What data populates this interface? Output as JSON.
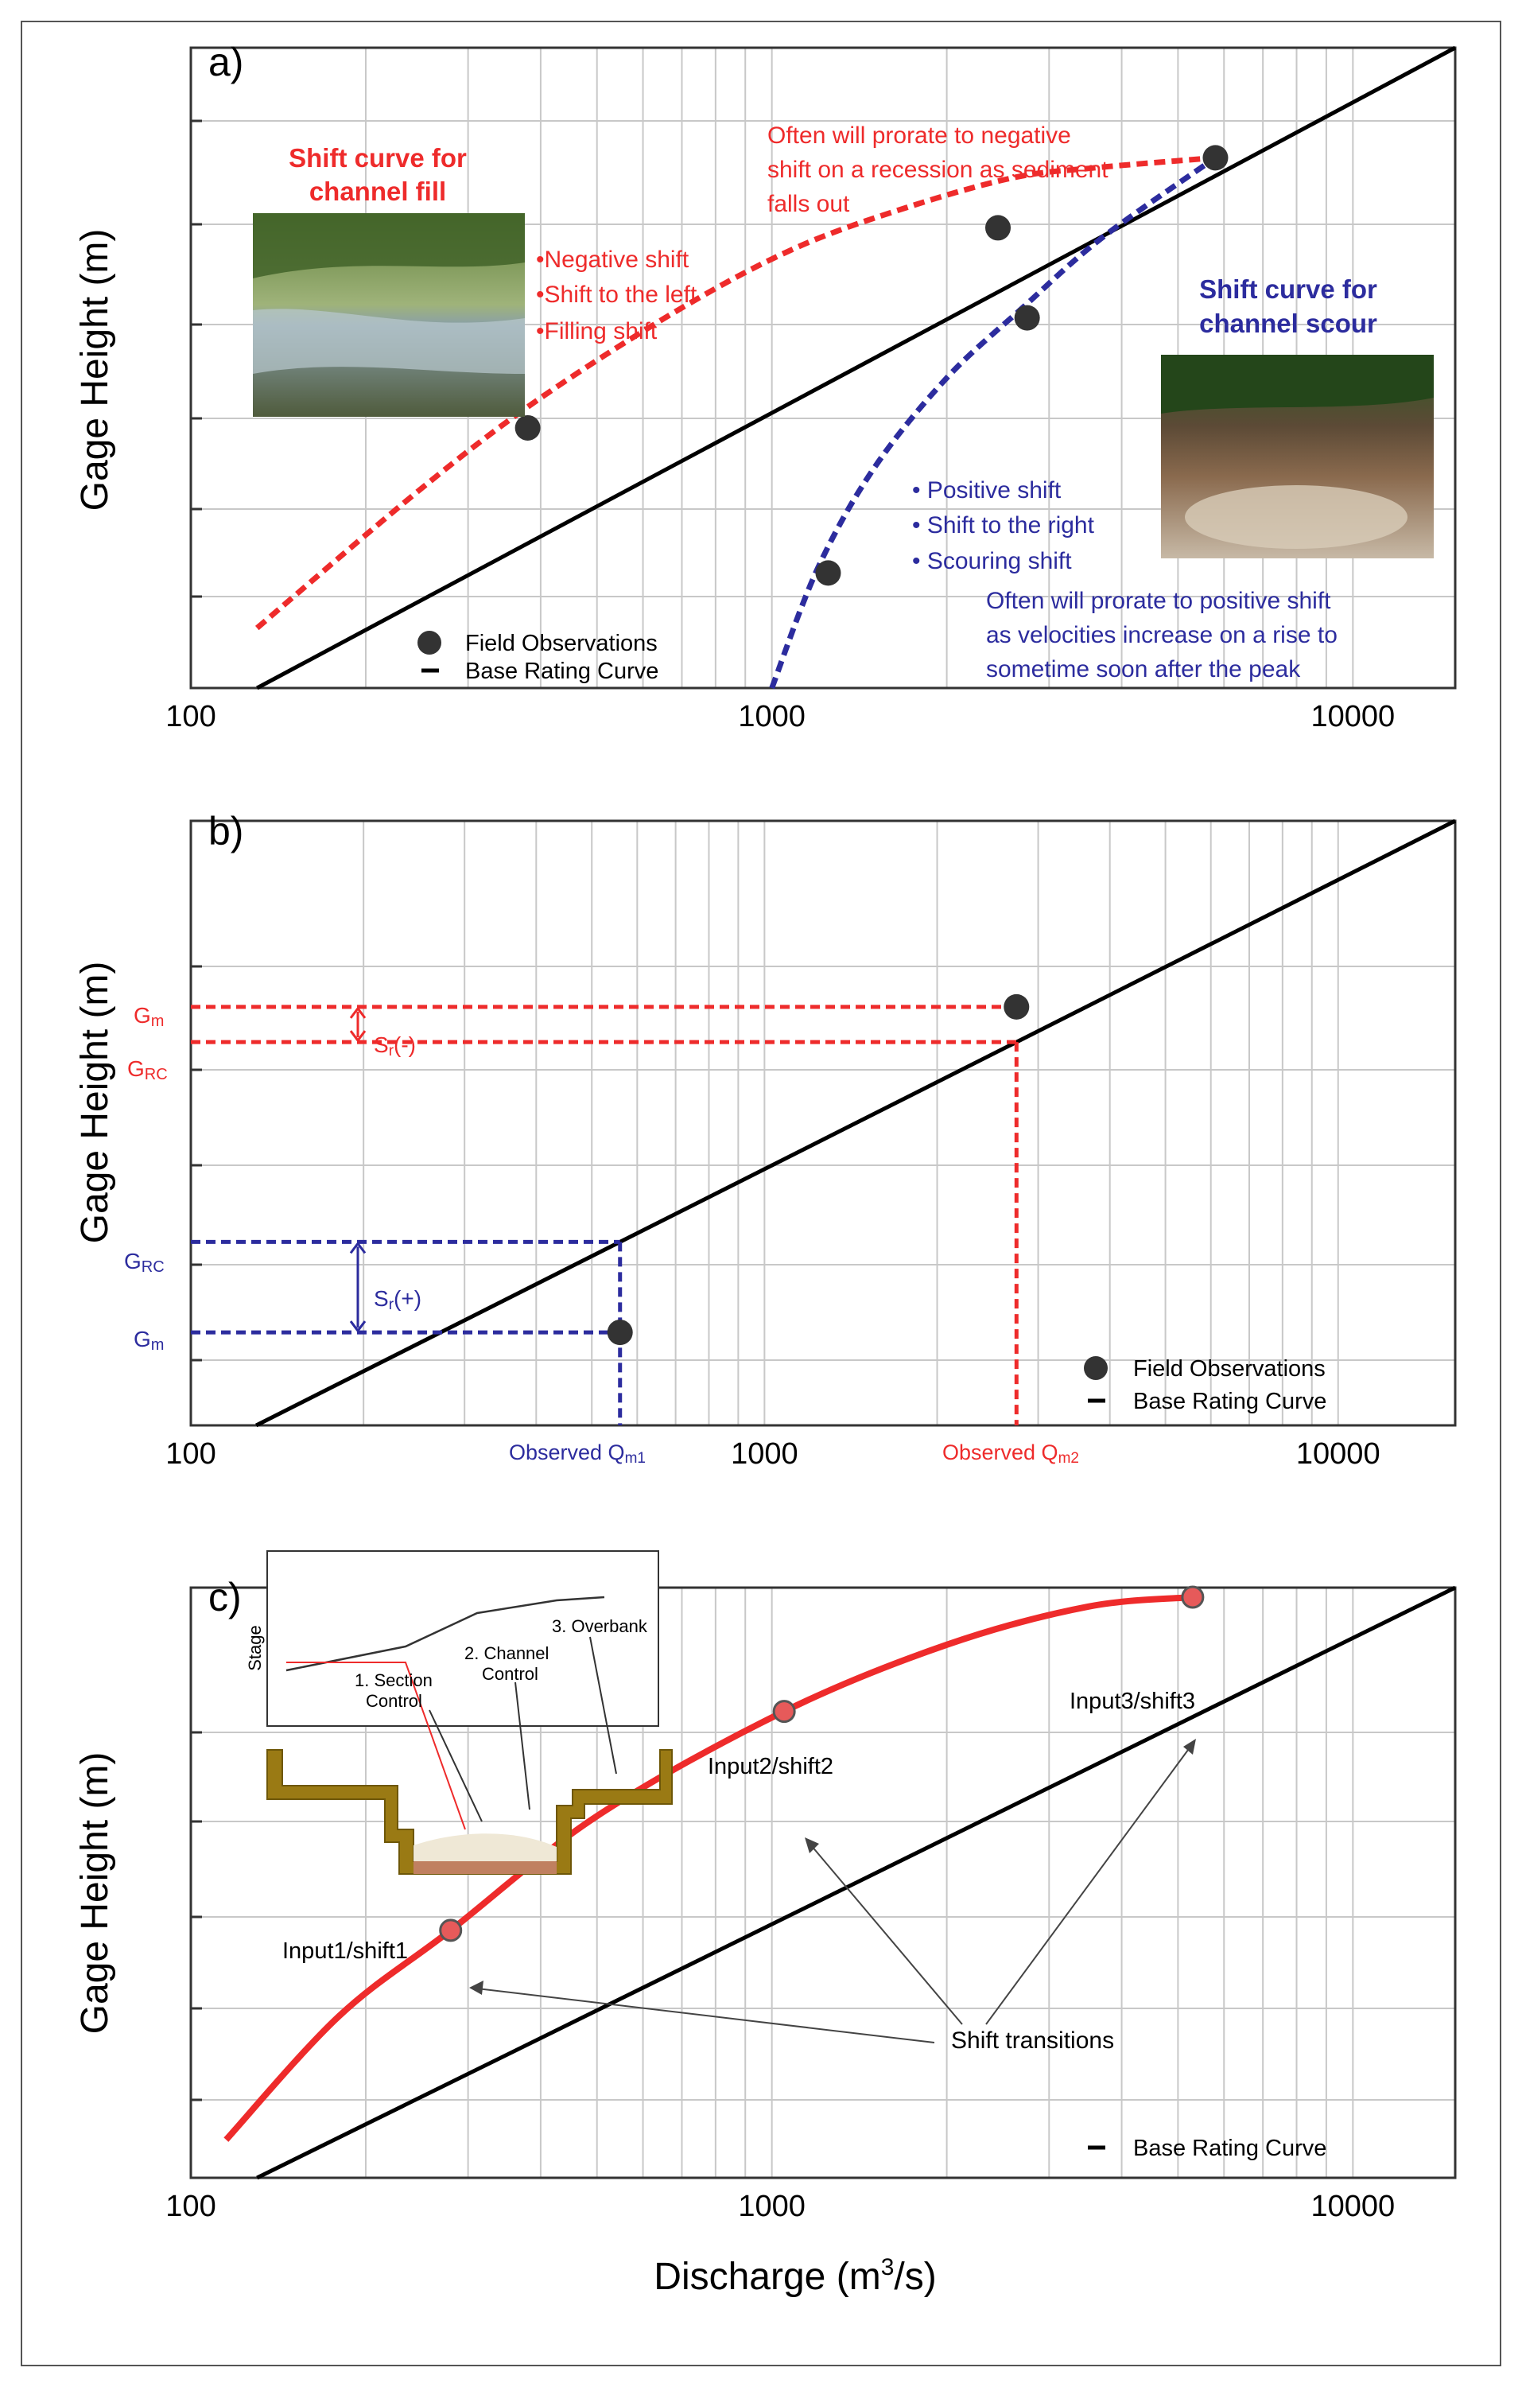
{
  "figure": {
    "ylabel": "Gage Height (m)",
    "xlabel": "Discharge (m",
    "xlabel_sup": "3",
    "xlabel_tail": "/s)",
    "x_ticks": [
      "100",
      "1000",
      "10000"
    ]
  },
  "panel_a": {
    "label": "a)",
    "fill_title_1": "Shift curve for",
    "fill_title_2": "channel fill",
    "fill_bullets": [
      "•Negative shift",
      "•Shift to the left",
      "•Filling shift"
    ],
    "fill_note": [
      "Often will prorate to negative",
      "shift on a recession as sediment",
      "falls out"
    ],
    "scour_title_1": "Shift curve for",
    "scour_title_2": "channel scour",
    "scour_bullets": [
      "• Positive shift",
      "• Shift to the right",
      "• Scouring shift"
    ],
    "scour_note": [
      "Often will prorate to positive shift",
      "as velocities increase on a rise to",
      "sometime soon after the peak"
    ],
    "legend_obs": "Field Observations",
    "legend_curve": "Base Rating  Curve",
    "photo_fill": "river photo",
    "photo_scour": "scoured channel photo"
  },
  "panel_b": {
    "label": "b)",
    "gm": "G",
    "gm_sub": "m",
    "grc": "G",
    "grc_sub": "RC",
    "sr_minus": "S",
    "sr_minus_sub": "r",
    "sr_minus_tail": "(-)",
    "sr_plus": "S",
    "sr_plus_sub": "r",
    "sr_plus_tail": "(+)",
    "obs_q1": "Observed Q",
    "obs_q1_sub": "m1",
    "obs_q2": "Observed Q",
    "obs_q2_sub": "m2",
    "legend_obs": "Field Observations",
    "legend_curve": "Base Rating  Curve"
  },
  "panel_c": {
    "label": "c)",
    "inset_ylabel": "Stage",
    "inset_labels": [
      "1. Section",
      "Control",
      "2. Channel",
      "Control",
      "3. Overbank"
    ],
    "point_labels": [
      "Input1/shift1",
      "Input2/shift2",
      "Input3/shift3"
    ],
    "transitions": "Shift transitions",
    "legend_curve": "Base Rating  Curve"
  },
  "colors": {
    "red": "#ee2b2b",
    "blue": "#2c2c9e",
    "black": "#000000",
    "grid": "#c8c8c8"
  },
  "chart_data": [
    {
      "type": "line",
      "panel": "a",
      "x_scale": "log",
      "xlim": [
        100,
        15000
      ],
      "x_ticks": [
        100,
        1000,
        10000
      ],
      "series": [
        {
          "name": "Base Rating  Curve",
          "x": [
            130,
            15000
          ],
          "y": [
            0.0,
            6.4
          ]
        },
        {
          "x": [
            130,
            250,
            400,
            700,
            1100,
            1700,
            2600,
            3600,
            5800
          ],
          "y": [
            0.6,
            2.0,
            2.9,
            3.8,
            4.4,
            4.8,
            5.1,
            5.2,
            5.3
          ]
        },
        {
          "x": [
            1000,
            1200,
            1500,
            2000,
            2700,
            3700,
            5800
          ],
          "y": [
            0.0,
            1.2,
            2.2,
            3.1,
            3.8,
            4.5,
            5.3
          ]
        }
      ],
      "points": [
        {
          "x": 380,
          "y": 2.6
        },
        {
          "x": 2450,
          "y": 4.6
        },
        {
          "x": 2750,
          "y": 3.7
        },
        {
          "x": 1250,
          "y": 1.15
        },
        {
          "x": 5800,
          "y": 5.3
        }
      ]
    },
    {
      "type": "line",
      "panel": "b",
      "x_scale": "log",
      "xlim": [
        100,
        16000
      ],
      "x_ticks": [
        100,
        1000,
        10000
      ],
      "series": [
        {
          "name": "Base Rating  Curve",
          "x": [
            130,
            16000
          ],
          "y": [
            0.0,
            6.5
          ]
        }
      ],
      "points": [
        {
          "x": 560,
          "y": 1.0
        },
        {
          "x": 2750,
          "y": 4.5
        }
      ]
    },
    {
      "type": "line",
      "panel": "c",
      "x_scale": "log",
      "xlim": [
        100,
        15000
      ],
      "x_ticks": [
        100,
        1000,
        10000
      ],
      "series": [
        {
          "name": "Base Rating  Curve",
          "x": [
            130,
            15000
          ],
          "y": [
            0.0,
            6.2
          ]
        },
        {
          "x": [
            115,
            180,
            280,
            500,
            1050,
            2000,
            3500,
            5300
          ],
          "y": [
            0.4,
            1.7,
            2.6,
            3.8,
            4.9,
            5.6,
            6.0,
            6.1
          ]
        }
      ],
      "points": [
        {
          "x": 280,
          "y": 2.6
        },
        {
          "x": 1050,
          "y": 4.9
        },
        {
          "x": 5300,
          "y": 6.1
        }
      ]
    }
  ]
}
